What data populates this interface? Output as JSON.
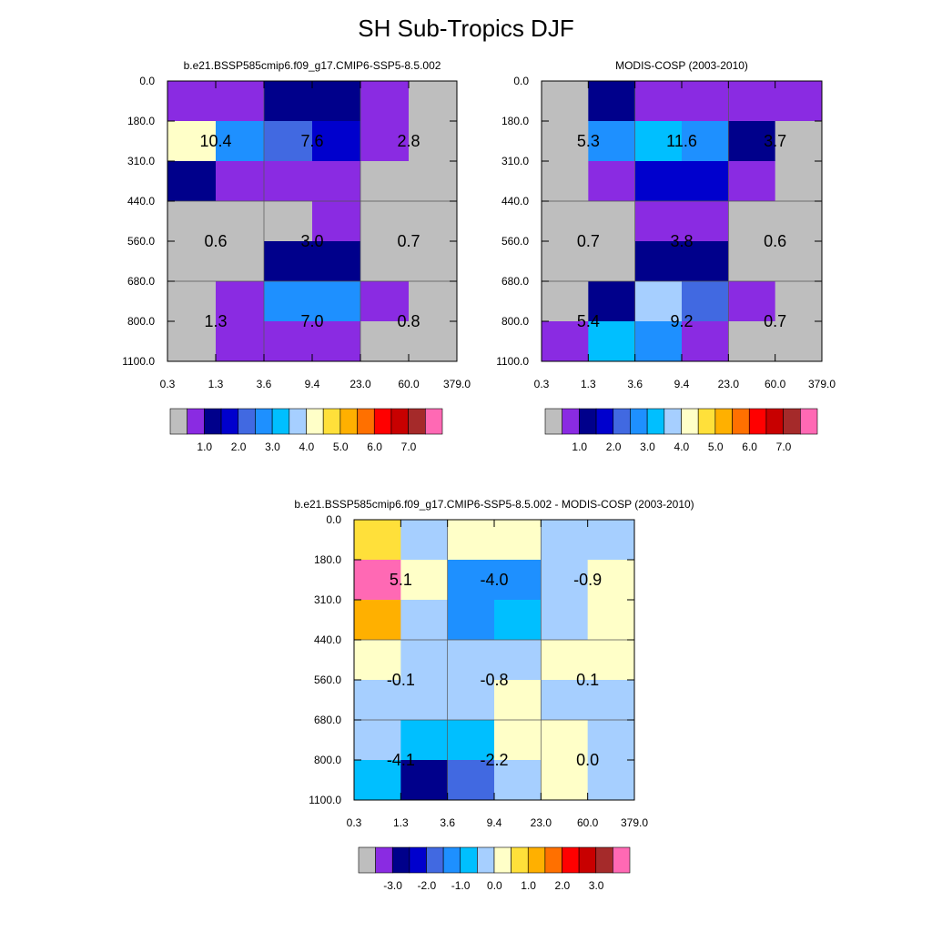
{
  "title": "SH Sub-Tropics DJF",
  "palettes": {
    "abs": [
      "#bebebe",
      "#8a2be2",
      "#00008b",
      "#0000cd",
      "#4169e1",
      "#1e90ff",
      "#00bfff",
      "#a6cfff",
      "#ffffc8",
      "#ffe03a",
      "#ffb000",
      "#ff7000",
      "#ff0000",
      "#c80000",
      "#a52a2a",
      "#ff69b4"
    ],
    "diff": [
      "#bebebe",
      "#8a2be2",
      "#00008b",
      "#0000cd",
      "#4169e1",
      "#1e90ff",
      "#00bfff",
      "#a6cfff",
      "#ffffc8",
      "#ffe03a",
      "#ffb000",
      "#ff7000",
      "#ff0000",
      "#c80000",
      "#a52a2a",
      "#ff69b4"
    ]
  },
  "chart_data": [
    {
      "type": "heatmap",
      "title": "b.e21.BSSP585cmip6.f09_g17.CMIP6-SSP5-8.5.002",
      "x_ticks": [
        "0.3",
        "1.3",
        "3.6",
        "9.4",
        "23.0",
        "60.0",
        "379.0"
      ],
      "y_ticks": [
        "0.0",
        "180.0",
        "310.0",
        "440.0",
        "560.0",
        "680.0",
        "800.0",
        "1100.0"
      ],
      "cells": [
        [
          "#8a2be2",
          "#8a2be2",
          "#00008b",
          "#00008b",
          "#8a2be2",
          "#bebebe"
        ],
        [
          "#ffffc8",
          "#1e90ff",
          "#4169e1",
          "#0000cd",
          "#8a2be2",
          "#bebebe"
        ],
        [
          "#00008b",
          "#8a2be2",
          "#8a2be2",
          "#8a2be2",
          "#bebebe",
          "#bebebe"
        ],
        [
          "#bebebe",
          "#bebebe",
          "#bebebe",
          "#8a2be2",
          "#bebebe",
          "#bebebe"
        ],
        [
          "#bebebe",
          "#bebebe",
          "#00008b",
          "#00008b",
          "#bebebe",
          "#bebebe"
        ],
        [
          "#bebebe",
          "#8a2be2",
          "#1e90ff",
          "#1e90ff",
          "#8a2be2",
          "#bebebe"
        ],
        [
          "#bebebe",
          "#8a2be2",
          "#8a2be2",
          "#8a2be2",
          "#bebebe",
          "#bebebe"
        ]
      ],
      "labels": [
        [
          "10.4",
          "7.6",
          "2.8"
        ],
        [
          "0.6",
          "3.0",
          "0.7"
        ],
        [
          "1.3",
          "7.0",
          "0.8"
        ]
      ],
      "colorbar_labels": [
        "1.0",
        "2.0",
        "3.0",
        "4.0",
        "5.0",
        "6.0",
        "7.0"
      ]
    },
    {
      "type": "heatmap",
      "title": "MODIS-COSP (2003-2010)",
      "x_ticks": [
        "0.3",
        "1.3",
        "3.6",
        "9.4",
        "23.0",
        "60.0",
        "379.0"
      ],
      "y_ticks": [
        "0.0",
        "180.0",
        "310.0",
        "440.0",
        "560.0",
        "680.0",
        "800.0",
        "1100.0"
      ],
      "cells": [
        [
          "#bebebe",
          "#00008b",
          "#8a2be2",
          "#8a2be2",
          "#8a2be2",
          "#8a2be2"
        ],
        [
          "#bebebe",
          "#1e90ff",
          "#00bfff",
          "#1e90ff",
          "#00008b",
          "#bebebe"
        ],
        [
          "#bebebe",
          "#8a2be2",
          "#0000cd",
          "#0000cd",
          "#8a2be2",
          "#bebebe"
        ],
        [
          "#bebebe",
          "#bebebe",
          "#8a2be2",
          "#8a2be2",
          "#bebebe",
          "#bebebe"
        ],
        [
          "#bebebe",
          "#bebebe",
          "#00008b",
          "#00008b",
          "#bebebe",
          "#bebebe"
        ],
        [
          "#bebebe",
          "#00008b",
          "#a6cfff",
          "#4169e1",
          "#8a2be2",
          "#bebebe"
        ],
        [
          "#8a2be2",
          "#00bfff",
          "#1e90ff",
          "#8a2be2",
          "#bebebe",
          "#bebebe"
        ]
      ],
      "labels": [
        [
          "5.3",
          "11.6",
          "3.7"
        ],
        [
          "0.7",
          "3.8",
          "0.6"
        ],
        [
          "5.4",
          "9.2",
          "0.7"
        ]
      ],
      "colorbar_labels": [
        "1.0",
        "2.0",
        "3.0",
        "4.0",
        "5.0",
        "6.0",
        "7.0"
      ]
    },
    {
      "type": "heatmap",
      "title": "b.e21.BSSP585cmip6.f09_g17.CMIP6-SSP5-8.5.002 - MODIS-COSP (2003-2010)",
      "x_ticks": [
        "0.3",
        "1.3",
        "3.6",
        "9.4",
        "23.0",
        "60.0",
        "379.0"
      ],
      "y_ticks": [
        "0.0",
        "180.0",
        "310.0",
        "440.0",
        "560.0",
        "680.0",
        "800.0",
        "1100.0"
      ],
      "cells": [
        [
          "#ffe03a",
          "#a6cfff",
          "#ffffc8",
          "#ffffc8",
          "#a6cfff",
          "#a6cfff"
        ],
        [
          "#ff69b4",
          "#ffffc8",
          "#1e90ff",
          "#1e90ff",
          "#a6cfff",
          "#ffffc8"
        ],
        [
          "#ffb000",
          "#a6cfff",
          "#1e90ff",
          "#00bfff",
          "#a6cfff",
          "#ffffc8"
        ],
        [
          "#ffffc8",
          "#a6cfff",
          "#a6cfff",
          "#a6cfff",
          "#ffffc8",
          "#ffffc8"
        ],
        [
          "#a6cfff",
          "#a6cfff",
          "#a6cfff",
          "#ffffc8",
          "#a6cfff",
          "#a6cfff"
        ],
        [
          "#a6cfff",
          "#00bfff",
          "#00bfff",
          "#ffffc8",
          "#ffffc8",
          "#a6cfff"
        ],
        [
          "#00bfff",
          "#00008b",
          "#4169e1",
          "#a6cfff",
          "#ffffc8",
          "#a6cfff"
        ]
      ],
      "labels": [
        [
          "5.1",
          "-4.0",
          "-0.9"
        ],
        [
          "-0.1",
          "-0.8",
          "0.1"
        ],
        [
          "-4.1",
          "-2.2",
          "0.0"
        ]
      ],
      "colorbar_labels": [
        "-3.0",
        "-2.0",
        "-1.0",
        "0.0",
        "1.0",
        "2.0",
        "3.0"
      ]
    }
  ]
}
